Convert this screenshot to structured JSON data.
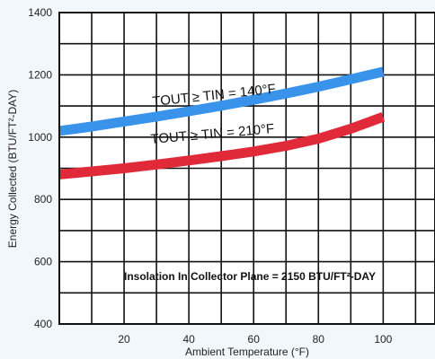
{
  "chart_data": {
    "type": "line",
    "xlabel": "Ambient Temperature (°F)",
    "ylabel": "Energy Collected (BTU/FT²-DAY)",
    "xlim": [
      0,
      116
    ],
    "ylim": [
      400,
      1400
    ],
    "x_ticks": [
      20,
      40,
      60,
      80,
      100
    ],
    "y_ticks": [
      400,
      600,
      800,
      1000,
      1200,
      1400
    ],
    "grid": true,
    "x_grid_step": 10,
    "y_grid_step": 100,
    "series": [
      {
        "name": "TOUT ≥ TIN = 140°F",
        "color": "#3a93ea",
        "x": [
          0,
          10,
          20,
          30,
          40,
          50,
          60,
          70,
          80,
          90,
          100
        ],
        "y": [
          1020,
          1034,
          1050,
          1066,
          1083,
          1101,
          1120,
          1140,
          1162,
          1186,
          1210
        ]
      },
      {
        "name": "TOUT ≥ TIN = 210°F",
        "color": "#e02a3a",
        "x": [
          0,
          10,
          20,
          30,
          40,
          50,
          60,
          70,
          80,
          90,
          100
        ],
        "y": [
          880,
          890,
          900,
          912,
          925,
          939,
          954,
          972,
          995,
          1027,
          1065
        ]
      }
    ],
    "annotations": [
      "Insolation In Collector Plane = 2150 BTU/FT²-DAY"
    ]
  }
}
